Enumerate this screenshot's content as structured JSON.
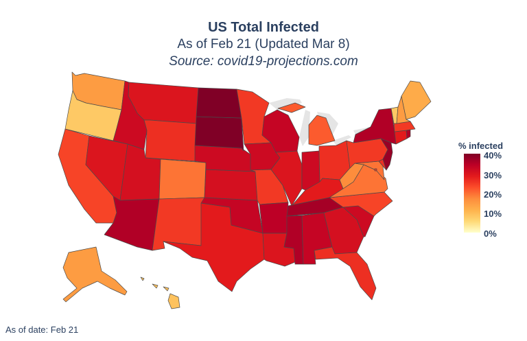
{
  "title": "US Total Infected",
  "subtitle": "As of Feb 21 (Updated Mar 8)",
  "source": "Source: covid19-projections.com",
  "colorbar": {
    "title": "% infected",
    "ticks": [
      "40%",
      "30%",
      "20%",
      "10%",
      "0%"
    ],
    "colors": [
      "#800026",
      "#bd0026",
      "#e31a1c",
      "#fc4e2a",
      "#fd8d3c",
      "#feb24c",
      "#fed976",
      "#ffffcc"
    ]
  },
  "as_of_label": "As of date:",
  "as_of_value": "Feb 21",
  "map_data": {
    "type": "choropleth",
    "region": "USA states",
    "metric": "percent infected",
    "range": [
      0,
      40
    ],
    "values": {
      "WA": 18,
      "OR": 12,
      "CA": 26,
      "NV": 31,
      "ID": 33,
      "MT": 31,
      "WY": 28,
      "UT": 32,
      "AZ": 36,
      "CO": 22,
      "NM": 27,
      "TX": 30,
      "OK": 34,
      "KS": 32,
      "NE": 33,
      "SD": 40,
      "ND": 40,
      "MN": 27,
      "IA": 33,
      "MO": 27,
      "AR": 35,
      "LA": 31,
      "WI": 34,
      "IL": 31,
      "MI": 24,
      "IN": 33,
      "OH": 28,
      "KY": 30,
      "TN": 37,
      "MS": 36,
      "AL": 34,
      "GA": 32,
      "FL": 28,
      "SC": 33,
      "NC": 26,
      "VA": 22,
      "WV": 20,
      "MD": 22,
      "DE": 28,
      "PA": 27,
      "NJ": 38,
      "NY": 36,
      "CT": 30,
      "RI": 36,
      "MA": 27,
      "VT": 12,
      "NH": 18,
      "ME": 16,
      "AK": 18,
      "HI": 13,
      "DC": 27
    }
  }
}
